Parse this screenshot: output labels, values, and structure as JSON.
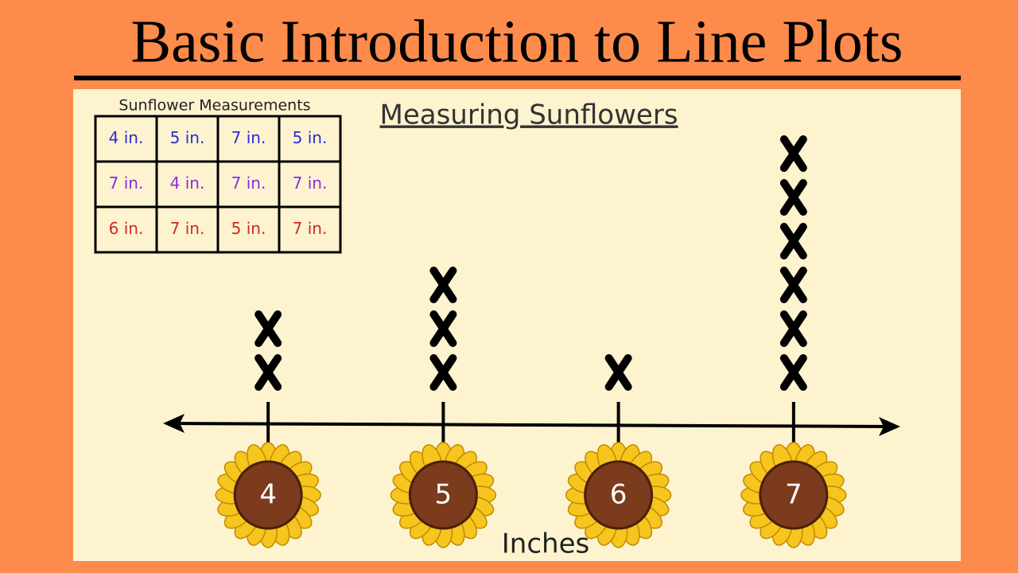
{
  "title": "Basic Introduction to Line Plots",
  "table": {
    "title": "Sunflower Measurements",
    "row_colors": [
      "#2b2bd6",
      "#8b2be0",
      "#d02a1e"
    ],
    "rows": [
      [
        "4 in.",
        "5 in.",
        "7 in.",
        "5 in."
      ],
      [
        "7 in.",
        "4 in.",
        "7 in.",
        "7 in."
      ],
      [
        "6 in.",
        "7 in.",
        "5 in.",
        "7 in."
      ]
    ]
  },
  "chart_data": {
    "type": "line_plot",
    "title": "Measuring Sunflowers",
    "x_label": "Inches",
    "x": [
      4,
      5,
      6,
      7
    ],
    "values": [
      2,
      3,
      1,
      6
    ],
    "xlim": [
      3.4,
      7.6
    ],
    "color": "#000000"
  }
}
